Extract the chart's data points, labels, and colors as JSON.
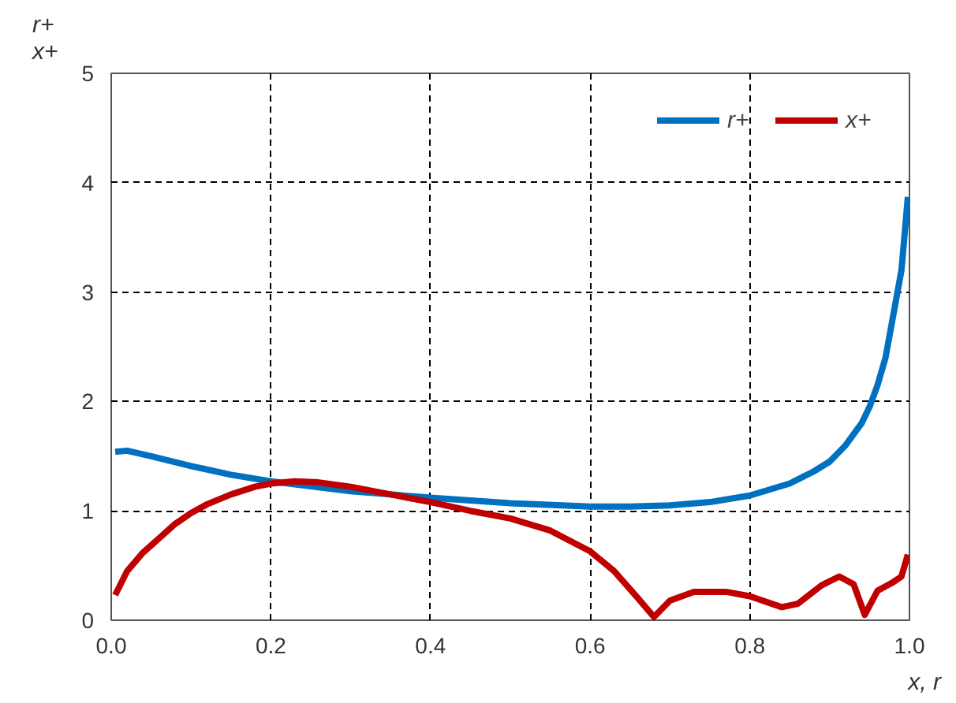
{
  "chart_data": {
    "type": "line",
    "xlabel": "x, r",
    "ylabel": "r+\nx+",
    "xlim": [
      0,
      1
    ],
    "xticks": [
      {
        "value": 0,
        "label": "0.0"
      },
      0.2,
      0.4,
      0.6,
      0.8,
      {
        "value": 1,
        "label": "1.0"
      }
    ],
    "ylim": [
      0,
      5
    ],
    "yticks": [
      0,
      1,
      2,
      3,
      4,
      5
    ],
    "grid": true,
    "legend": "top right",
    "line_style": "solid",
    "marker": "none",
    "series": [
      {
        "name": "r+",
        "color": "#0070c0",
        "x": [
          0.005,
          0.02,
          0.05,
          0.1,
          0.15,
          0.2,
          0.3,
          0.4,
          0.5,
          0.6,
          0.65,
          0.7,
          0.75,
          0.8,
          0.85,
          0.88,
          0.9,
          0.92,
          0.94,
          0.95,
          0.96,
          0.97,
          0.98,
          0.99,
          0.998
        ],
        "values": [
          1.54,
          1.55,
          1.5,
          1.41,
          1.33,
          1.27,
          1.18,
          1.12,
          1.07,
          1.04,
          1.04,
          1.05,
          1.08,
          1.14,
          1.25,
          1.36,
          1.45,
          1.6,
          1.8,
          1.95,
          2.15,
          2.4,
          2.8,
          3.2,
          3.87
        ]
      },
      {
        "name": "x+",
        "color": "#c00000",
        "x": [
          0.005,
          0.02,
          0.04,
          0.06,
          0.08,
          0.1,
          0.12,
          0.15,
          0.18,
          0.2,
          0.23,
          0.26,
          0.3,
          0.35,
          0.4,
          0.45,
          0.5,
          0.55,
          0.6,
          0.63,
          0.66,
          0.68,
          0.7,
          0.73,
          0.77,
          0.8,
          0.84,
          0.86,
          0.89,
          0.912,
          0.93,
          0.944,
          0.96,
          0.98,
          0.99,
          0.998
        ],
        "values": [
          0.23,
          0.45,
          0.62,
          0.75,
          0.88,
          0.98,
          1.06,
          1.15,
          1.22,
          1.25,
          1.27,
          1.26,
          1.22,
          1.15,
          1.08,
          1.0,
          0.93,
          0.82,
          0.63,
          0.45,
          0.2,
          0.03,
          0.18,
          0.26,
          0.26,
          0.22,
          0.12,
          0.15,
          0.32,
          0.4,
          0.33,
          0.05,
          0.27,
          0.35,
          0.4,
          0.6
        ]
      }
    ]
  }
}
